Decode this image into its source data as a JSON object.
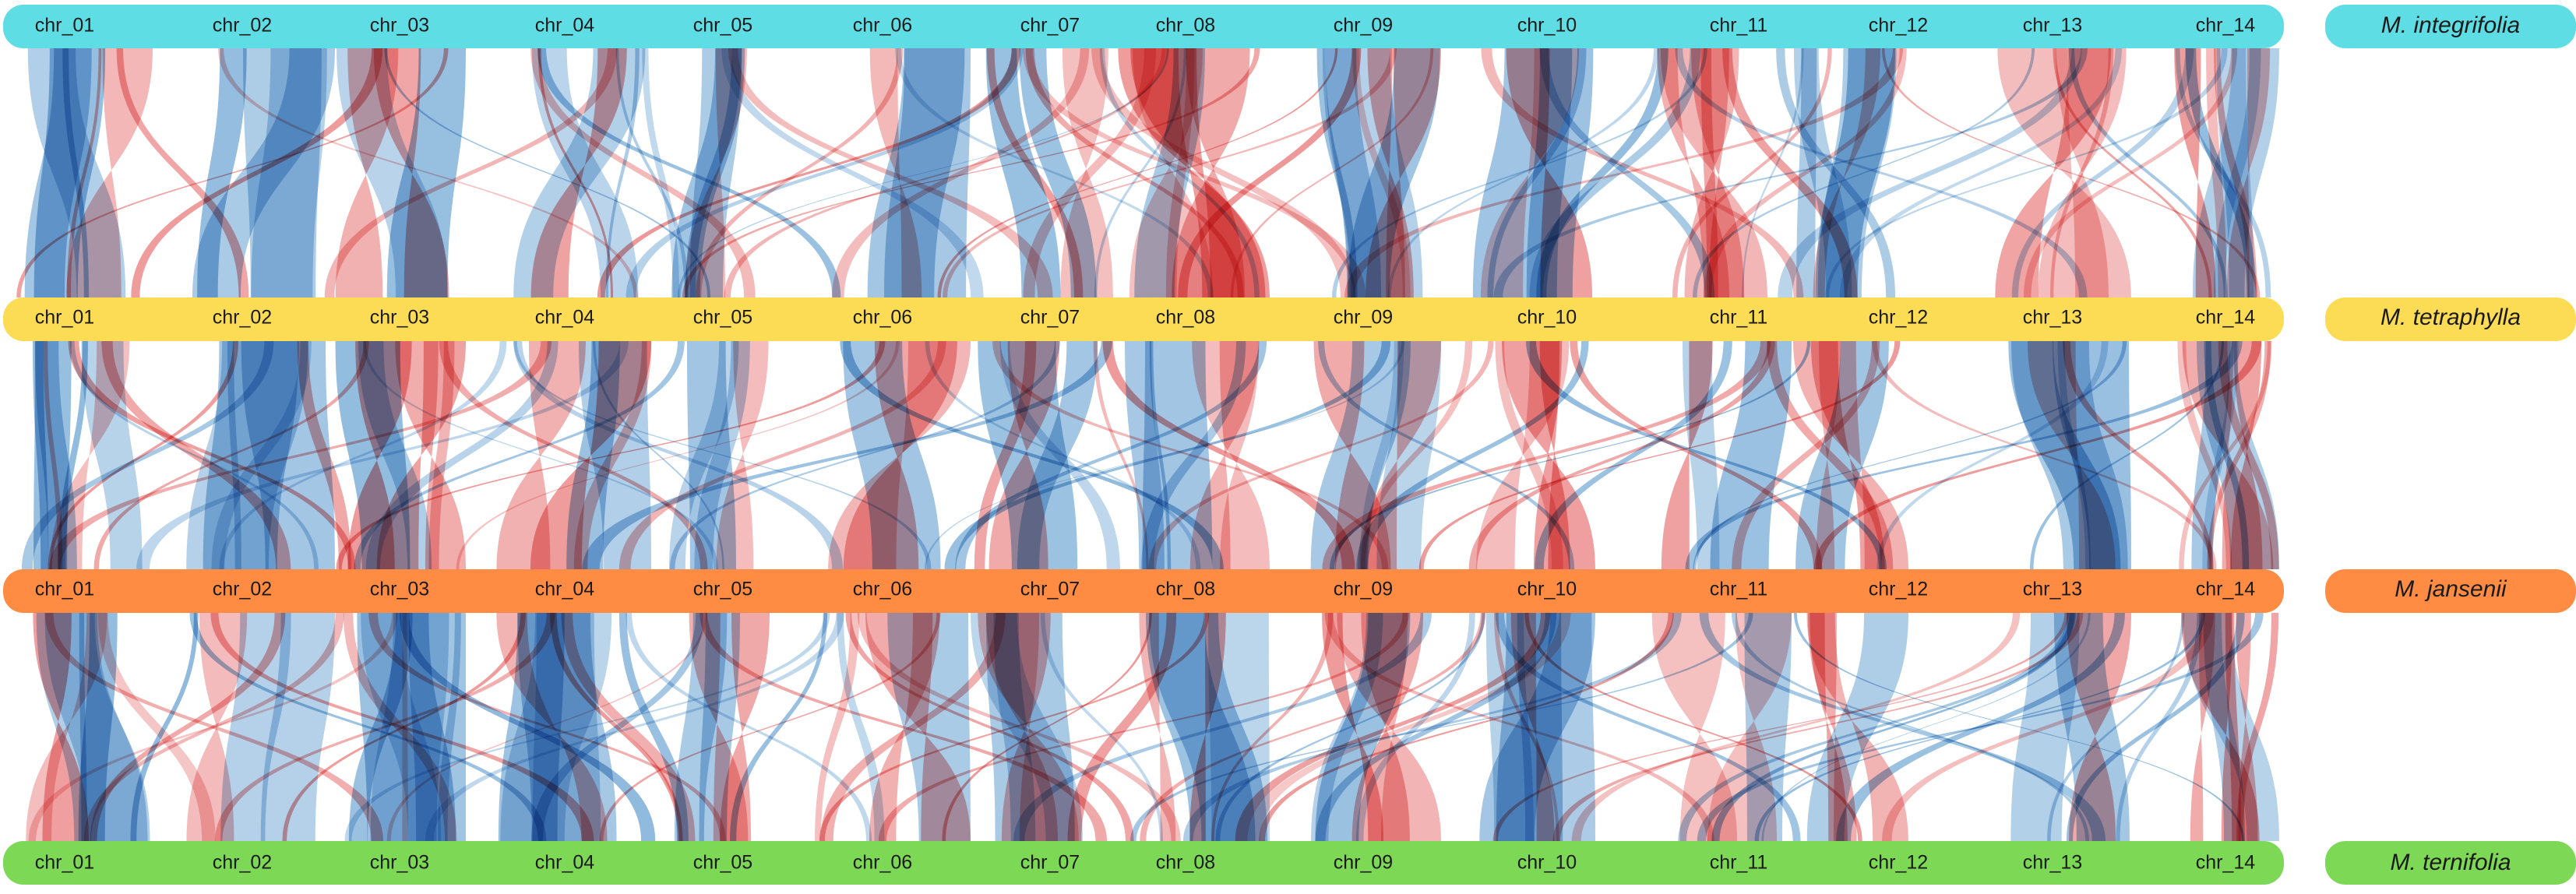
{
  "colors": {
    "inverted_block": "#de3c3c",
    "collinear_block": "#2f7fc1"
  },
  "tracks": [
    {
      "species": "M. integrifolia",
      "color": "#5fdde4",
      "chromosomes": [
        "chr_01",
        "chr_02",
        "chr_03",
        "chr_04",
        "chr_05",
        "chr_06",
        "chr_07",
        "chr_08",
        "chr_09",
        "chr_10",
        "chr_11",
        "chr_12",
        "chr_13",
        "chr_14"
      ]
    },
    {
      "species": "M. tetraphylla",
      "color": "#fddc55",
      "chromosomes": [
        "chr_01",
        "chr_02",
        "chr_03",
        "chr_04",
        "chr_05",
        "chr_06",
        "chr_07",
        "chr_08",
        "chr_09",
        "chr_10",
        "chr_11",
        "chr_12",
        "chr_13",
        "chr_14"
      ]
    },
    {
      "species": "M. jansenii",
      "color": "#ff8c42",
      "chromosomes": [
        "chr_01",
        "chr_02",
        "chr_03",
        "chr_04",
        "chr_05",
        "chr_06",
        "chr_07",
        "chr_08",
        "chr_09",
        "chr_10",
        "chr_11",
        "chr_12",
        "chr_13",
        "chr_14"
      ]
    },
    {
      "species": "M. ternifolia",
      "color": "#7dd855",
      "chromosomes": [
        "chr_01",
        "chr_02",
        "chr_03",
        "chr_04",
        "chr_05",
        "chr_06",
        "chr_07",
        "chr_08",
        "chr_09",
        "chr_10",
        "chr_11",
        "chr_12",
        "chr_13",
        "chr_14"
      ]
    }
  ]
}
